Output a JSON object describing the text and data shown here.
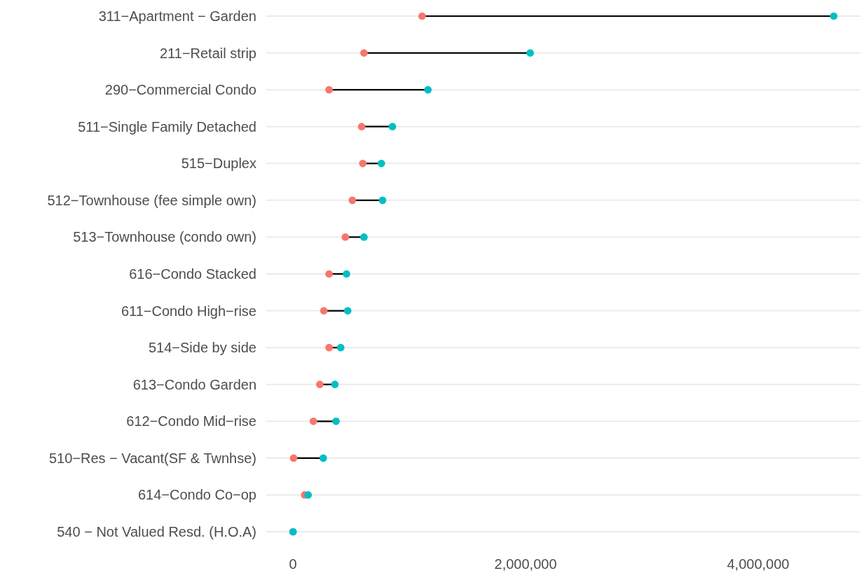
{
  "chart_data": {
    "type": "scatter",
    "orientation": "horizontal",
    "categories": [
      "311−Apartment − Garden",
      "211−Retail strip",
      "290−Commercial Condo",
      "511−Single Family Detached",
      "515−Duplex",
      "512−Townhouse (fee simple own)",
      "513−Townhouse (condo own)",
      "616−Condo Stacked",
      "611−Condo High−rise",
      "514−Side by side",
      "613−Condo Garden",
      "612−Condo Mid−rise",
      "510−Res − Vacant(SF & Twnhse)",
      "614−Condo Co−op",
      "540 − Not Valued Resd. (H.O.A)"
    ],
    "series": [
      {
        "color": "#f8766d",
        "values": [
          1110000,
          610000,
          310000,
          590000,
          600000,
          510000,
          450000,
          310000,
          265000,
          310000,
          230000,
          175000,
          5000,
          100000,
          0
        ]
      },
      {
        "color": "#00bfc4",
        "values": [
          4650000,
          2040000,
          1160000,
          855000,
          760000,
          770000,
          610000,
          460000,
          470000,
          410000,
          360000,
          370000,
          260000,
          130000,
          0
        ]
      }
    ],
    "xlim": [
      -230000,
      4880000
    ],
    "xticks": [
      0,
      {
        "value": 2000000,
        "label": "2,000,000"
      },
      {
        "value": 4000000,
        "label": "4,000,000"
      }
    ],
    "grid": "y",
    "marker": "circle"
  }
}
